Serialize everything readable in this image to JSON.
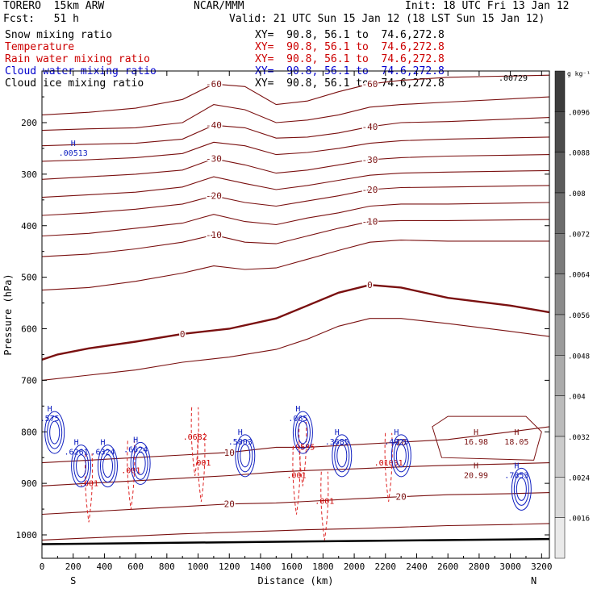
{
  "header": {
    "model": "TORERO  15km ARW",
    "center": "NCAR/MMM",
    "init": "Init: 18 UTC Fri 13 Jan 12",
    "fcst": "Fcst:   51 h",
    "valid": "Valid: 21 UTC Sun 15 Jan 12 (18 LST Sun 15 Jan 12)"
  },
  "fields": [
    {
      "label": "Snow mixing ratio",
      "xy": "XY=  90.8, 56.1 to  74.6,272.8",
      "color": "#000000"
    },
    {
      "label": "Temperature",
      "xy": "XY=  90.8, 56.1 to  74.6,272.8",
      "color": "#cc0000"
    },
    {
      "label": "Rain water mixing ratio",
      "xy": "XY=  90.8, 56.1 to  74.6,272.8",
      "color": "#cc0000"
    },
    {
      "label": "Cloud water mixing ratio",
      "xy": "XY=  90.8, 56.1 to  74.6,272.8",
      "color": "#0000cc"
    },
    {
      "label": "Cloud ice mixing ratio",
      "xy": "XY=  90.8, 56.1 to  74.6,272.8",
      "color": "#000000"
    }
  ],
  "chart_data": {
    "type": "cross-section contour",
    "xlabel": "Distance (km)",
    "ylabel": "Pressure (hPa)",
    "xlim": [
      0,
      3250
    ],
    "ylim": [
      1050,
      100
    ],
    "xticks": [
      0,
      200,
      400,
      600,
      800,
      1000,
      1200,
      1400,
      1600,
      1800,
      2000,
      2200,
      2400,
      2600,
      2800,
      3000,
      3200
    ],
    "yticks": [
      200,
      300,
      400,
      500,
      600,
      700,
      800,
      900,
      1000
    ],
    "x_end_labels": {
      "left": "S",
      "right": "N"
    },
    "colorbar": {
      "unit": "g kg⁻¹",
      "ticks": [
        ".0096",
        ".0088",
        ".008",
        ".0072",
        ".0064",
        ".0056",
        ".0048",
        ".004",
        ".0032",
        ".0024",
        ".0016"
      ]
    },
    "temperature_contours": [
      {
        "value": -60,
        "label": "-60",
        "points": [
          [
            0,
            185
          ],
          [
            300,
            180
          ],
          [
            600,
            172
          ],
          [
            900,
            155
          ],
          [
            1100,
            125
          ],
          [
            1300,
            130
          ],
          [
            1500,
            165
          ],
          [
            1700,
            158
          ],
          [
            1900,
            140
          ],
          [
            2100,
            125
          ],
          [
            2300,
            118
          ],
          [
            2600,
            112
          ],
          [
            3250,
            108
          ]
        ]
      },
      {
        "value": -50,
        "label": "",
        "points": [
          [
            0,
            215
          ],
          [
            300,
            212
          ],
          [
            600,
            210
          ],
          [
            900,
            200
          ],
          [
            1100,
            165
          ],
          [
            1300,
            175
          ],
          [
            1500,
            200
          ],
          [
            1700,
            195
          ],
          [
            1900,
            185
          ],
          [
            2100,
            170
          ],
          [
            2300,
            165
          ],
          [
            2600,
            160
          ],
          [
            3250,
            150
          ]
        ]
      },
      {
        "value": -40,
        "label": "-40",
        "points": [
          [
            0,
            245
          ],
          [
            300,
            242
          ],
          [
            600,
            240
          ],
          [
            900,
            232
          ],
          [
            1100,
            205
          ],
          [
            1300,
            210
          ],
          [
            1500,
            230
          ],
          [
            1700,
            228
          ],
          [
            1900,
            220
          ],
          [
            2100,
            208
          ],
          [
            2300,
            200
          ],
          [
            2600,
            198
          ],
          [
            3250,
            190
          ]
        ]
      },
      {
        "value": -35,
        "label": "",
        "points": [
          [
            0,
            275
          ],
          [
            300,
            272
          ],
          [
            600,
            268
          ],
          [
            900,
            260
          ],
          [
            1100,
            238
          ],
          [
            1300,
            245
          ],
          [
            1500,
            262
          ],
          [
            1700,
            258
          ],
          [
            1900,
            250
          ],
          [
            2100,
            240
          ],
          [
            2300,
            235
          ],
          [
            2600,
            232
          ],
          [
            3250,
            228
          ]
        ]
      },
      {
        "value": -30,
        "label": "-30",
        "points": [
          [
            0,
            310
          ],
          [
            300,
            305
          ],
          [
            600,
            300
          ],
          [
            900,
            292
          ],
          [
            1100,
            270
          ],
          [
            1300,
            282
          ],
          [
            1500,
            298
          ],
          [
            1700,
            292
          ],
          [
            1900,
            282
          ],
          [
            2100,
            272
          ],
          [
            2300,
            268
          ],
          [
            2600,
            265
          ],
          [
            3250,
            262
          ]
        ]
      },
      {
        "value": -25,
        "label": "",
        "points": [
          [
            0,
            345
          ],
          [
            300,
            340
          ],
          [
            600,
            335
          ],
          [
            900,
            325
          ],
          [
            1100,
            305
          ],
          [
            1300,
            318
          ],
          [
            1500,
            330
          ],
          [
            1700,
            322
          ],
          [
            1900,
            312
          ],
          [
            2100,
            302
          ],
          [
            2300,
            298
          ],
          [
            2600,
            296
          ],
          [
            3250,
            293
          ]
        ]
      },
      {
        "value": -20,
        "label": "-20",
        "points": [
          [
            0,
            380
          ],
          [
            300,
            375
          ],
          [
            600,
            368
          ],
          [
            900,
            358
          ],
          [
            1100,
            342
          ],
          [
            1300,
            355
          ],
          [
            1500,
            362
          ],
          [
            1700,
            352
          ],
          [
            1900,
            342
          ],
          [
            2100,
            330
          ],
          [
            2300,
            326
          ],
          [
            2600,
            325
          ],
          [
            3250,
            322
          ]
        ]
      },
      {
        "value": -15,
        "label": "",
        "points": [
          [
            0,
            420
          ],
          [
            300,
            415
          ],
          [
            600,
            405
          ],
          [
            900,
            395
          ],
          [
            1100,
            378
          ],
          [
            1300,
            392
          ],
          [
            1500,
            398
          ],
          [
            1700,
            385
          ],
          [
            1900,
            375
          ],
          [
            2100,
            362
          ],
          [
            2300,
            358
          ],
          [
            2600,
            358
          ],
          [
            3250,
            355
          ]
        ]
      },
      {
        "value": -10,
        "label": "-10",
        "points": [
          [
            0,
            460
          ],
          [
            300,
            455
          ],
          [
            600,
            445
          ],
          [
            900,
            432
          ],
          [
            1100,
            418
          ],
          [
            1300,
            432
          ],
          [
            1500,
            435
          ],
          [
            1700,
            420
          ],
          [
            1900,
            405
          ],
          [
            2100,
            392
          ],
          [
            2300,
            390
          ],
          [
            2600,
            390
          ],
          [
            3250,
            388
          ]
        ]
      },
      {
        "value": -5,
        "label": "",
        "points": [
          [
            0,
            525
          ],
          [
            300,
            520
          ],
          [
            600,
            508
          ],
          [
            900,
            492
          ],
          [
            1100,
            478
          ],
          [
            1300,
            485
          ],
          [
            1500,
            482
          ],
          [
            1700,
            465
          ],
          [
            1900,
            448
          ],
          [
            2100,
            432
          ],
          [
            2300,
            428
          ],
          [
            2600,
            430
          ],
          [
            3250,
            430
          ]
        ]
      },
      {
        "value": 0,
        "label": "0",
        "points": [
          [
            0,
            660
          ],
          [
            100,
            650
          ],
          [
            300,
            638
          ],
          [
            600,
            625
          ],
          [
            900,
            610
          ],
          [
            1200,
            600
          ],
          [
            1500,
            580
          ],
          [
            1700,
            555
          ],
          [
            1900,
            530
          ],
          [
            2100,
            515
          ],
          [
            2300,
            520
          ],
          [
            2600,
            540
          ],
          [
            3000,
            555
          ],
          [
            3250,
            568
          ]
        ]
      },
      {
        "value": 5,
        "label": "",
        "points": [
          [
            0,
            700
          ],
          [
            300,
            690
          ],
          [
            600,
            680
          ],
          [
            900,
            665
          ],
          [
            1200,
            655
          ],
          [
            1500,
            640
          ],
          [
            1700,
            620
          ],
          [
            1900,
            595
          ],
          [
            2100,
            580
          ],
          [
            2300,
            580
          ],
          [
            2600,
            590
          ],
          [
            3000,
            605
          ],
          [
            3250,
            615
          ]
        ]
      },
      {
        "value": 10,
        "label": "10",
        "points": [
          [
            0,
            860
          ],
          [
            300,
            855
          ],
          [
            600,
            850
          ],
          [
            900,
            845
          ],
          [
            1200,
            840
          ],
          [
            1500,
            830
          ],
          [
            1700,
            830
          ],
          [
            2000,
            825
          ],
          [
            2300,
            820
          ],
          [
            2600,
            815
          ],
          [
            3000,
            800
          ],
          [
            3250,
            790
          ]
        ]
      },
      {
        "value": 15,
        "label": "",
        "points": [
          [
            0,
            905
          ],
          [
            300,
            900
          ],
          [
            600,
            895
          ],
          [
            900,
            890
          ],
          [
            1200,
            885
          ],
          [
            1500,
            878
          ],
          [
            1700,
            875
          ],
          [
            2000,
            872
          ],
          [
            2300,
            868
          ],
          [
            2600,
            865
          ],
          [
            3000,
            862
          ],
          [
            3250,
            860
          ]
        ]
      },
      {
        "value": 20,
        "label": "20",
        "points": [
          [
            0,
            960
          ],
          [
            300,
            955
          ],
          [
            600,
            950
          ],
          [
            900,
            945
          ],
          [
            1200,
            940
          ],
          [
            1500,
            938
          ],
          [
            1700,
            935
          ],
          [
            2000,
            930
          ],
          [
            2300,
            926
          ],
          [
            2600,
            922
          ],
          [
            3000,
            920
          ],
          [
            3250,
            918
          ]
        ]
      },
      {
        "value": 25,
        "label": "",
        "points": [
          [
            0,
            1010
          ],
          [
            300,
            1006
          ],
          [
            600,
            1002
          ],
          [
            900,
            998
          ],
          [
            1200,
            995
          ],
          [
            1500,
            992
          ],
          [
            1700,
            990
          ],
          [
            2000,
            988
          ],
          [
            2300,
            985
          ],
          [
            2600,
            982
          ],
          [
            3000,
            980
          ],
          [
            3250,
            978
          ]
        ]
      }
    ],
    "cloud_water_maxima": [
      {
        "label": "H",
        "value": ".575",
        "x": 50,
        "p": 770
      },
      {
        "label": "H",
        "value": ".6261",
        "x": 220,
        "p": 835
      },
      {
        "label": "H",
        "value": ".6324",
        "x": 390,
        "p": 835
      },
      {
        "label": "H",
        "value": ".6624",
        "x": 600,
        "p": 830
      },
      {
        "label": "H",
        "value": ".5803",
        "x": 1270,
        "p": 815
      },
      {
        "label": "H",
        "value": ".065",
        "x": 1640,
        "p": 770
      },
      {
        "label": "H",
        "value": ".3685",
        "x": 1890,
        "p": 815
      },
      {
        "label": "H",
        "value": ".4823",
        "x": 2270,
        "p": 815
      },
      {
        "label": "H",
        "value": ".7853",
        "x": 3040,
        "p": 880
      },
      {
        "label": "H",
        "value": ".00513",
        "x": 200,
        "p": 255
      }
    ],
    "rain_maxima": [
      {
        "label": "H",
        "value": ".0682",
        "x": 980,
        "p": 815
      },
      {
        "label": "H",
        "value": ".0535",
        "x": 1670,
        "p": 835
      },
      {
        "label": "H",
        "value": ".01031",
        "x": 2220,
        "p": 865
      },
      {
        "label": "H",
        "value": ".001",
        "x": 300,
        "p": 905
      },
      {
        "label": "H",
        "value": ".001",
        "x": 570,
        "p": 880
      },
      {
        "label": "H",
        "value": ".001",
        "x": 1020,
        "p": 865
      },
      {
        "label": "H",
        "value": ".001",
        "x": 1630,
        "p": 890
      },
      {
        "label": "H",
        "value": ".001",
        "x": 1810,
        "p": 940
      }
    ],
    "temperature_maxima": [
      {
        "label": "H",
        "value": "16.98",
        "x": 2780,
        "p": 815
      },
      {
        "label": "H",
        "value": "18.05",
        "x": 3040,
        "p": 815
      },
      {
        "label": "H",
        "value": "20.99",
        "x": 2780,
        "p": 880
      }
    ],
    "colorbar_max_label": ".00729"
  }
}
